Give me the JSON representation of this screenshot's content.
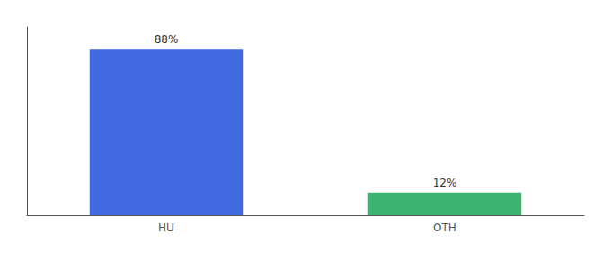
{
  "chart_data": {
    "type": "bar",
    "categories": [
      "HU",
      "OTH"
    ],
    "values": [
      88,
      12
    ],
    "colors": [
      "#4169E1",
      "#3CB371"
    ],
    "ylim": [
      0,
      100
    ],
    "grid": false,
    "tick_labels": "x",
    "data_labels": true,
    "value_labels": [
      "88%",
      "12%"
    ]
  }
}
